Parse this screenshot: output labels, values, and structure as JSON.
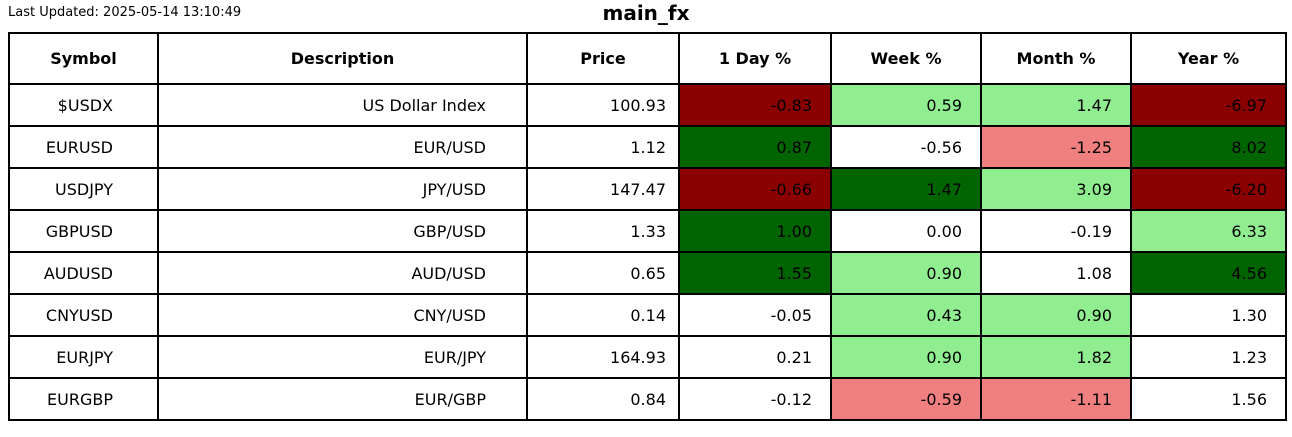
{
  "page": {
    "last_updated": "Last Updated: 2025-05-14 13:10:49",
    "title": "main_fx"
  },
  "colors": {
    "strong_negative": "#8b0000",
    "strong_positive": "#006400",
    "mild_positive": "#90ee90",
    "mild_negative": "#f08080",
    "neutral": "#ffffff",
    "border": "#000000",
    "text": "#000000"
  },
  "chart_data": {
    "type": "table",
    "title": "main_fx",
    "columns": [
      "Symbol",
      "Description",
      "Price",
      "1 Day %",
      "Week %",
      "Month %",
      "Year %"
    ],
    "rows": [
      {
        "symbol": "$USDX",
        "description": "US Dollar Index",
        "price": 100.93,
        "day_pct": -0.83,
        "week_pct": 0.59,
        "month_pct": 1.47,
        "year_pct": -6.97,
        "cell_colors": {
          "day": "darkred",
          "week": "lightgreen",
          "month": "lightgreen",
          "year": "darkred"
        }
      },
      {
        "symbol": "EURUSD",
        "description": "EUR/USD",
        "price": 1.12,
        "day_pct": 0.87,
        "week_pct": -0.56,
        "month_pct": -1.25,
        "year_pct": 8.02,
        "cell_colors": {
          "day": "darkgreen",
          "week": "white",
          "month": "lightcoral",
          "year": "darkgreen"
        }
      },
      {
        "symbol": "USDJPY",
        "description": "JPY/USD",
        "price": 147.47,
        "day_pct": -0.66,
        "week_pct": 1.47,
        "month_pct": 3.09,
        "year_pct": -6.2,
        "cell_colors": {
          "day": "darkred",
          "week": "darkgreen",
          "month": "lightgreen",
          "year": "darkred"
        }
      },
      {
        "symbol": "GBPUSD",
        "description": "GBP/USD",
        "price": 1.33,
        "day_pct": 1.0,
        "week_pct": 0.0,
        "month_pct": -0.19,
        "year_pct": 6.33,
        "cell_colors": {
          "day": "darkgreen",
          "week": "white",
          "month": "white",
          "year": "lightgreen"
        }
      },
      {
        "symbol": "AUDUSD",
        "description": "AUD/USD",
        "price": 0.65,
        "day_pct": 1.55,
        "week_pct": 0.9,
        "month_pct": 1.08,
        "year_pct": 4.56,
        "cell_colors": {
          "day": "darkgreen",
          "week": "lightgreen",
          "month": "white",
          "year": "darkgreen"
        }
      },
      {
        "symbol": "CNYUSD",
        "description": "CNY/USD",
        "price": 0.14,
        "day_pct": -0.05,
        "week_pct": 0.43,
        "month_pct": 0.9,
        "year_pct": 1.3,
        "cell_colors": {
          "day": "white",
          "week": "lightgreen",
          "month": "lightgreen",
          "year": "white"
        }
      },
      {
        "symbol": "EURJPY",
        "description": "EUR/JPY",
        "price": 164.93,
        "day_pct": 0.21,
        "week_pct": 0.9,
        "month_pct": 1.82,
        "year_pct": 1.23,
        "cell_colors": {
          "day": "white",
          "week": "lightgreen",
          "month": "lightgreen",
          "year": "white"
        }
      },
      {
        "symbol": "EURGBP",
        "description": "EUR/GBP",
        "price": 0.84,
        "day_pct": -0.12,
        "week_pct": -0.59,
        "month_pct": -1.11,
        "year_pct": 1.56,
        "cell_colors": {
          "day": "white",
          "week": "lightcoral",
          "month": "lightcoral",
          "year": "white"
        }
      }
    ]
  }
}
